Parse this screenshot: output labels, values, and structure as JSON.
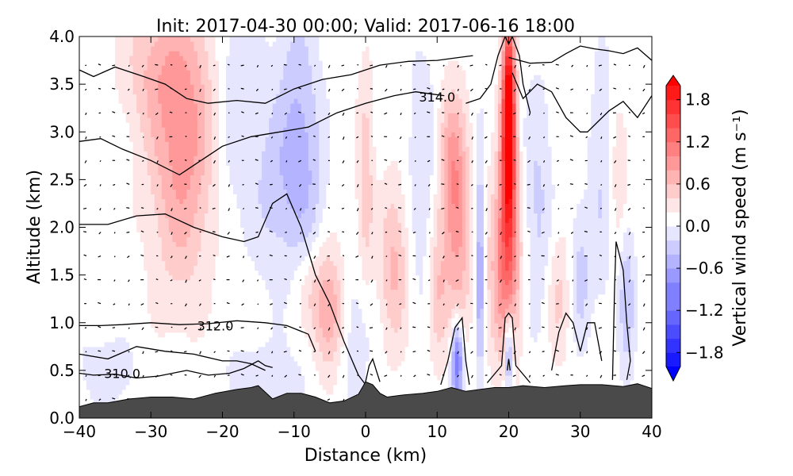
{
  "chart_data": {
    "type": "heatmap",
    "title": "Init: 2017-04-30 00:00; Valid: 2017-06-16 18:00",
    "xlabel": "Distance (km)",
    "ylabel": "Altitude (km)",
    "xlim": [
      -40,
      40
    ],
    "ylim": [
      0.0,
      4.0
    ],
    "xticks": [
      -40,
      -30,
      -20,
      -10,
      0,
      10,
      20,
      30,
      40
    ],
    "xtick_labels": [
      "−40",
      "−30",
      "−20",
      "−10",
      "0",
      "10",
      "20",
      "30",
      "40"
    ],
    "yticks": [
      0.0,
      0.5,
      1.0,
      1.5,
      2.0,
      2.5,
      3.0,
      3.5,
      4.0
    ],
    "ytick_labels": [
      "0.0",
      "0.5",
      "1.0",
      "1.5",
      "2.0",
      "2.5",
      "3.0",
      "3.5",
      "4.0"
    ],
    "colorbar": {
      "label": "Vertical wind speed (m s⁻¹)",
      "range": [
        -2.0,
        2.0
      ],
      "ticks": [
        1.8,
        1.2,
        0.6,
        0.0,
        -0.6,
        -1.2,
        -1.8
      ],
      "tick_labels": [
        "1.8",
        "1.2",
        "0.6",
        "0.0",
        "−0.6",
        "−1.2",
        "−1.8"
      ],
      "colors": {
        "max": "#ff0000",
        "mid": "#ffffff",
        "min": "#0000ff"
      }
    },
    "terrain_color": "#4a4a4a",
    "terrain": {
      "x": [
        -40,
        -38,
        -36,
        -33,
        -30,
        -27,
        -24,
        -21,
        -18,
        -16,
        -15,
        -13,
        -11,
        -9,
        -7,
        -5,
        -3,
        -1,
        0,
        1,
        2,
        3,
        5,
        8,
        10,
        12,
        14,
        16,
        18,
        20,
        22,
        25,
        28,
        30,
        33,
        36,
        38,
        40
      ],
      "y": [
        0.12,
        0.16,
        0.16,
        0.2,
        0.22,
        0.22,
        0.2,
        0.26,
        0.3,
        0.32,
        0.34,
        0.2,
        0.26,
        0.26,
        0.22,
        0.16,
        0.18,
        0.25,
        0.38,
        0.35,
        0.26,
        0.22,
        0.24,
        0.26,
        0.28,
        0.32,
        0.28,
        0.3,
        0.32,
        0.32,
        0.34,
        0.32,
        0.34,
        0.35,
        0.35,
        0.33,
        0.36,
        0.31
      ]
    },
    "w_features": [
      {
        "x": -25,
        "z": 3.3,
        "sx": 3.5,
        "sz": 0.9,
        "w": 0.55
      },
      {
        "x": -26,
        "z": 2.3,
        "sx": 3.0,
        "sz": 0.9,
        "w": 0.4
      },
      {
        "x": -30,
        "z": 3.7,
        "sx": 3.0,
        "sz": 0.5,
        "w": 0.35
      },
      {
        "x": -18,
        "z": 3.3,
        "sx": 2.5,
        "sz": 0.8,
        "w": -0.35
      },
      {
        "x": -10,
        "z": 3.1,
        "sx": 2.0,
        "sz": 0.9,
        "w": -0.4
      },
      {
        "x": -13,
        "z": 2.3,
        "sx": 2.0,
        "sz": 0.6,
        "w": -0.3
      },
      {
        "x": -8,
        "z": 2.2,
        "sx": 1.8,
        "sz": 1.0,
        "w": -0.35
      },
      {
        "x": -5,
        "z": 1.1,
        "sx": 1.6,
        "sz": 0.45,
        "w": 0.8
      },
      {
        "x": -8,
        "z": 1.4,
        "sx": 1.5,
        "sz": 0.4,
        "w": 0.4
      },
      {
        "x": -2,
        "z": 0.9,
        "sx": 2.0,
        "sz": 0.5,
        "w": -0.3
      },
      {
        "x": 0,
        "z": 2.5,
        "sx": 0.8,
        "sz": 0.8,
        "w": 0.45
      },
      {
        "x": 4,
        "z": 1.6,
        "sx": 1.5,
        "sz": 0.6,
        "w": 0.55
      },
      {
        "x": 8,
        "z": 2.5,
        "sx": 1.5,
        "sz": 1.0,
        "w": -0.3
      },
      {
        "x": 12,
        "z": 2.6,
        "sx": 1.4,
        "sz": 0.6,
        "w": 0.65
      },
      {
        "x": 13,
        "z": 1.8,
        "sx": 1.3,
        "sz": 0.8,
        "w": 0.55
      },
      {
        "x": 10,
        "z": 1.3,
        "sx": 1.0,
        "sz": 0.5,
        "w": 0.5
      },
      {
        "x": 12.8,
        "z": 0.6,
        "sx": 0.6,
        "sz": 0.3,
        "w": -1.2
      },
      {
        "x": 16,
        "z": 1.6,
        "sx": 0.45,
        "sz": 0.8,
        "w": -0.8
      },
      {
        "x": 20,
        "z": 3.4,
        "sx": 0.6,
        "sz": 0.6,
        "w": 1.7
      },
      {
        "x": 20,
        "z": 2.6,
        "sx": 0.8,
        "sz": 0.7,
        "w": 1.3
      },
      {
        "x": 19.5,
        "z": 1.6,
        "sx": 1.6,
        "sz": 0.7,
        "w": 0.9
      },
      {
        "x": 20,
        "z": 0.7,
        "sx": 0.4,
        "sz": 0.3,
        "w": -0.9
      },
      {
        "x": 24,
        "z": 2.2,
        "sx": 1.5,
        "sz": 0.9,
        "w": -0.35
      },
      {
        "x": 27,
        "z": 1.3,
        "sx": 1.2,
        "sz": 0.5,
        "w": 0.35
      },
      {
        "x": 30,
        "z": 1.5,
        "sx": 1.0,
        "sz": 0.5,
        "w": -0.4
      },
      {
        "x": 33,
        "z": 2.5,
        "sx": 1.2,
        "sz": 0.9,
        "w": -0.3
      },
      {
        "x": 36.5,
        "z": 1.3,
        "sx": 0.8,
        "sz": 0.6,
        "w": -0.5
      },
      {
        "x": 35.5,
        "z": 2.5,
        "sx": 1.0,
        "sz": 0.6,
        "w": 0.3
      },
      {
        "x": -36,
        "z": 0.5,
        "sx": 3.0,
        "sz": 0.3,
        "w": -0.2
      },
      {
        "x": -15,
        "z": 0.4,
        "sx": 4.0,
        "sz": 0.3,
        "w": -0.2
      }
    ],
    "theta_contours": [
      {
        "x": [
          -40,
          -38,
          -35,
          -32,
          -29,
          -25,
          -22,
          -19,
          -17,
          -15,
          -14,
          -13
        ],
        "y": [
          0.47,
          0.45,
          0.46,
          0.42,
          0.44,
          0.5,
          0.45,
          0.47,
          0.52,
          0.6,
          0.55,
          0.53
        ]
      },
      {
        "x": [
          -40,
          -36,
          -32,
          -28,
          -24,
          -20,
          -18,
          -16,
          -14
        ],
        "y": [
          0.67,
          0.62,
          0.75,
          0.7,
          0.67,
          0.6,
          0.6,
          0.57,
          0.5
        ]
      },
      {
        "x": [
          -40,
          -37,
          -34,
          -30,
          -26,
          -22,
          -18,
          -14,
          -11,
          -8,
          -7
        ],
        "y": [
          0.97,
          0.97,
          0.98,
          1.0,
          0.98,
          0.99,
          1.02,
          1.0,
          0.97,
          0.88,
          0.7
        ]
      },
      {
        "x": [
          -40,
          -36,
          -32,
          -28,
          -24,
          -20,
          -17,
          -15,
          -13,
          -11,
          -9,
          -7,
          -5,
          -4,
          -3,
          -1,
          0
        ],
        "y": [
          2.03,
          2.03,
          2.12,
          2.14,
          2.0,
          1.9,
          1.85,
          1.9,
          2.25,
          2.35,
          2.0,
          1.5,
          1.2,
          1.0,
          0.8,
          0.45,
          0.35
        ]
      },
      {
        "x": [
          -40,
          -37,
          -34,
          -30,
          -26,
          -24,
          -20,
          -16,
          -12,
          -8,
          -4,
          0,
          4,
          7,
          9,
          11
        ],
        "y": [
          2.9,
          2.93,
          2.82,
          2.7,
          2.55,
          2.65,
          2.85,
          2.95,
          3.0,
          3.05,
          3.2,
          3.3,
          3.38,
          3.42,
          3.4,
          3.38
        ]
      },
      {
        "x": [
          -40,
          -38,
          -35,
          -31,
          -28,
          -25,
          -22,
          -18,
          -14,
          -10,
          -6,
          -2,
          2,
          6,
          10,
          13,
          15
        ],
        "y": [
          3.65,
          3.58,
          3.68,
          3.58,
          3.5,
          3.35,
          3.3,
          3.33,
          3.3,
          3.45,
          3.55,
          3.6,
          3.7,
          3.74,
          3.75,
          3.78,
          3.8
        ]
      },
      {
        "x": [
          14,
          16,
          17.5,
          18.5,
          19.5,
          20,
          20.5,
          21.5,
          22,
          23
        ],
        "y": [
          3.3,
          3.35,
          3.5,
          3.8,
          4.0,
          3.92,
          4.0,
          3.8,
          3.5,
          3.2
        ]
      },
      {
        "x": [
          20,
          23,
          26,
          28,
          30,
          32,
          34,
          36,
          38,
          40
        ],
        "y": [
          3.78,
          3.72,
          3.73,
          3.82,
          3.9,
          3.87,
          3.85,
          3.82,
          3.88,
          3.75
        ]
      },
      {
        "x": [
          20.5,
          22,
          24,
          26,
          28,
          30,
          31,
          34,
          36,
          38,
          40
        ],
        "y": [
          3.62,
          3.35,
          3.5,
          3.42,
          3.15,
          3.0,
          3.0,
          3.22,
          3.32,
          3.15,
          3.38
        ]
      },
      {
        "x": [
          0,
          0.5,
          1,
          1.5,
          2
        ],
        "y": [
          0.38,
          0.55,
          0.62,
          0.5,
          0.38
        ]
      },
      {
        "x": [
          10.5,
          11.5,
          12.5,
          13.5,
          14,
          14.5
        ],
        "y": [
          0.35,
          0.6,
          0.95,
          1.05,
          0.6,
          0.35
        ]
      },
      {
        "x": [
          17,
          19,
          19.5,
          20,
          20.5,
          21,
          23
        ],
        "y": [
          0.37,
          0.55,
          1.05,
          1.1,
          1.05,
          0.55,
          0.37
        ]
      },
      {
        "x": [
          19.8,
          20,
          20.2
        ],
        "y": [
          0.5,
          0.62,
          0.5
        ]
      },
      {
        "x": [
          26,
          27,
          28,
          29,
          30,
          31,
          32,
          33
        ],
        "y": [
          0.5,
          0.9,
          1.1,
          1.0,
          0.7,
          1.0,
          1.0,
          0.6
        ]
      },
      {
        "x": [
          34.5,
          34.8,
          35,
          36,
          36.5,
          37,
          36.5
        ],
        "y": [
          0.4,
          1.4,
          1.85,
          1.55,
          1.0,
          0.6,
          0.4
        ]
      }
    ],
    "contour_labels": [
      {
        "text": "314.0",
        "x": 10,
        "z": 3.37
      },
      {
        "text": "312.0",
        "x": -21,
        "z": 0.97
      },
      {
        "text": "310.0",
        "x": -34,
        "z": 0.47
      }
    ]
  }
}
